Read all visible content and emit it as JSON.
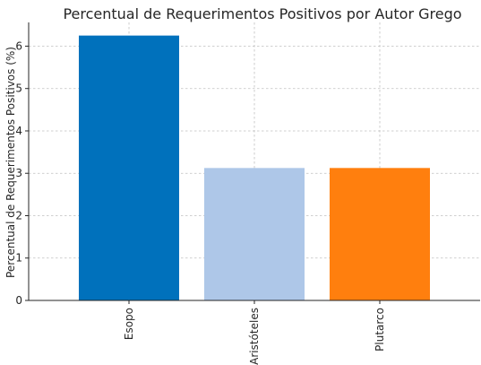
{
  "chart_data": {
    "type": "bar",
    "title": "Percentual de Requerimentos Positivos por Autor Grego",
    "xlabel": "",
    "ylabel": "Percentual de Requerimentos Positivos (%)",
    "categories": [
      "Esopo",
      "Aristóteles",
      "Plutarco"
    ],
    "values": [
      6.25,
      3.125,
      3.125
    ],
    "colors": [
      "#0071bc",
      "#aec7e8",
      "#ff7f0e"
    ],
    "ylim": [
      0,
      6.56
    ],
    "yticks": [
      "0",
      "1",
      "2",
      "3",
      "4",
      "5",
      "6"
    ],
    "grid": true,
    "legend": "none"
  }
}
